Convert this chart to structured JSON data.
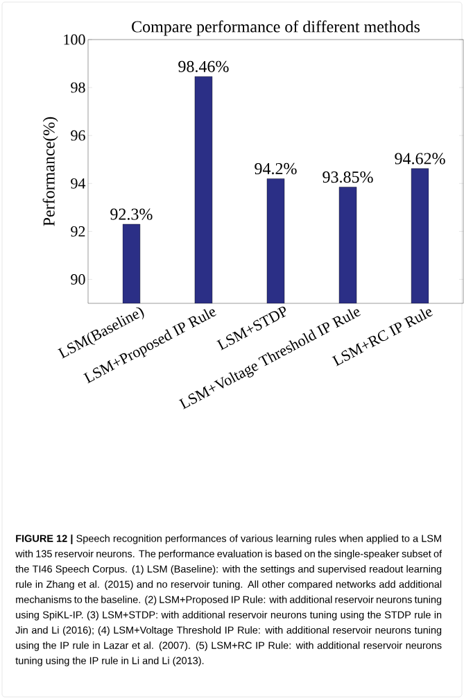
{
  "chart_data": {
    "type": "bar",
    "title": "Compare performance of different methods",
    "ylabel": "Performance(%)",
    "categories": [
      "LSM(Baseline)",
      "LSM+Proposed IP Rule",
      "LSM+STDP",
      "LSM+Voltage Threshold IP Rule",
      "LSM+RC IP Rule"
    ],
    "values": [
      92.3,
      98.46,
      94.2,
      93.85,
      94.62
    ],
    "value_labels": [
      "92.3%",
      "98.46%",
      "94.2%",
      "93.85%",
      "94.62%"
    ],
    "color": "#2b2f86",
    "ylim": [
      89,
      100
    ],
    "yticks": [
      90,
      92,
      94,
      96,
      98,
      100
    ],
    "grid": false,
    "annotations": [
      "**FIGURE 12 |** Speech recognition performances of various learning rules when applied to a LSM with 135 reservoir neurons. The performance evaluation is based on the single-speaker subset of the TI46 Speech Corpus. (1) LSM (Baseline): with the settings and supervised readout learning rule in Zhang et al. (2015) and no reservoir tuning. All other compared networks add additional mechanisms to the baseline. (2) LSM+Proposed IP Rule: with additional reservoir neurons tuning using SpiKL-IP. (3) LSM+STDP: with additional reservoir neurons tuning using the STDP rule in Jin and Li (2016); (4) LSM+Voltage Threshold IP Rule: with additional reservoir neurons tuning using the IP rule in Lazar et al. (2007). (5) LSM+RC IP Rule: with additional reservoir neurons tuning using the IP rule in Li and Li (2013)."
    ]
  }
}
